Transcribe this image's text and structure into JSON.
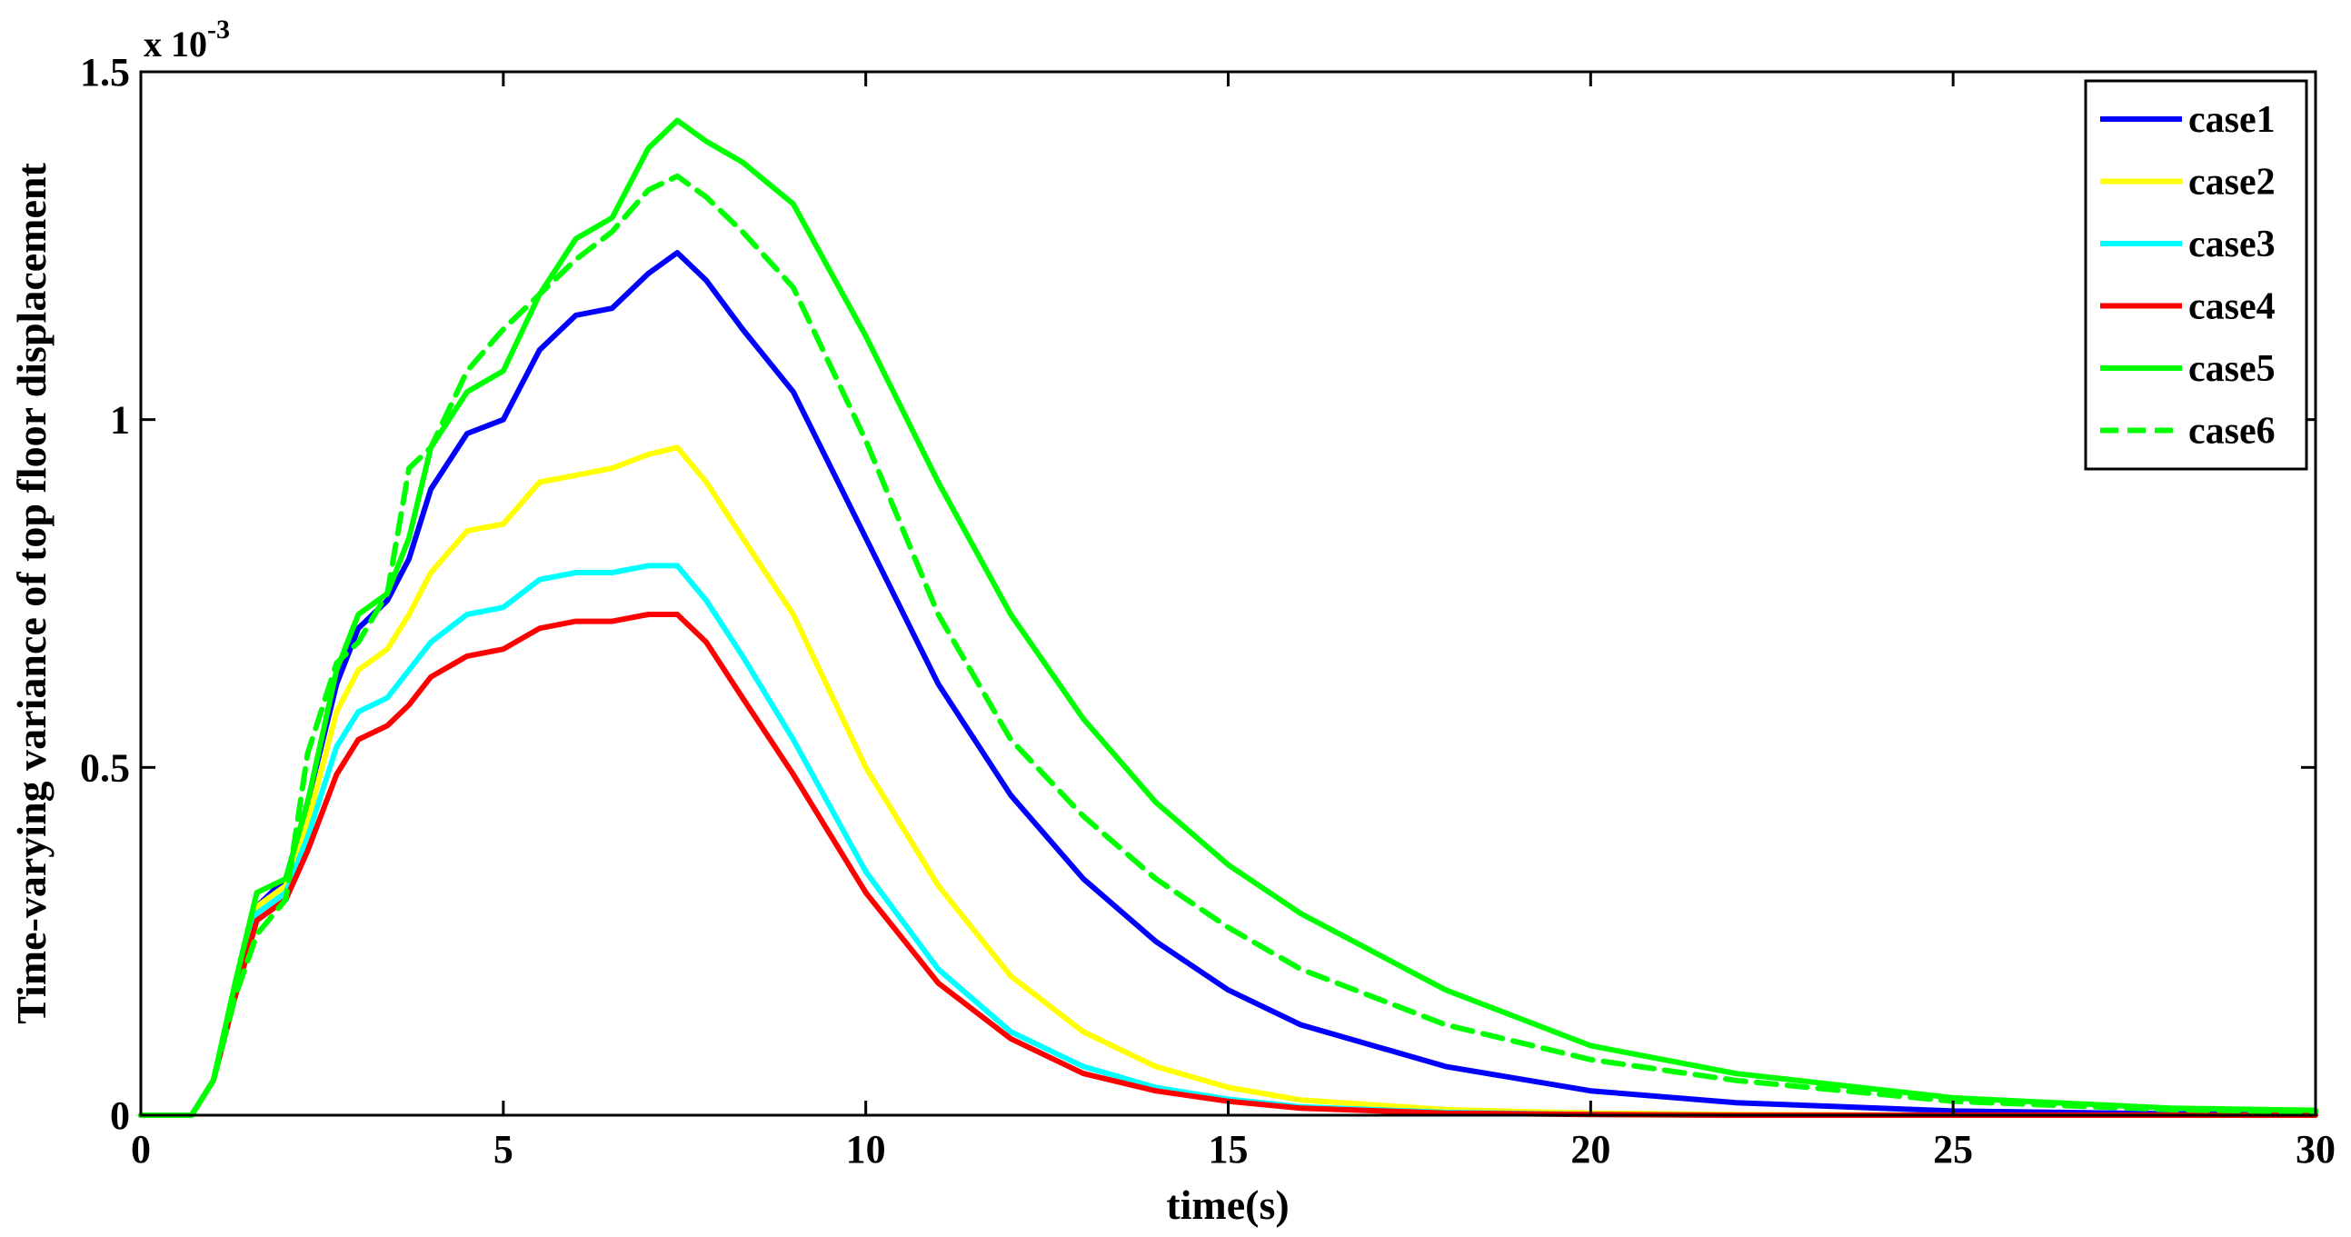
{
  "chart_data": {
    "type": "line",
    "xlabel": "time(s)",
    "ylabel": "Time-varying variance of top floor displacement",
    "y_multiplier": "x 10",
    "y_multiplier_exp": "-3",
    "xlim": [
      0,
      30
    ],
    "ylim": [
      0,
      1.5
    ],
    "x_ticks": [
      "0",
      "5",
      "10",
      "15",
      "20",
      "25",
      "30"
    ],
    "y_ticks": [
      "0",
      "0.5",
      "1",
      "1.5"
    ],
    "grid": false,
    "legend_position": "top-right",
    "x": [
      0,
      0.7,
      1.0,
      1.3,
      1.6,
      2.0,
      2.3,
      2.7,
      3.0,
      3.4,
      3.7,
      4.0,
      4.5,
      5.0,
      5.5,
      6.0,
      6.5,
      7.0,
      7.4,
      7.8,
      8.3,
      9.0,
      10.0,
      11.0,
      12.0,
      13.0,
      14.0,
      15.0,
      16.0,
      18.0,
      20.0,
      22.0,
      25.0,
      28.0,
      30.0
    ],
    "series": [
      {
        "name": "case1",
        "color": "#0000ff",
        "style": "solid",
        "values": [
          0,
          0,
          0.05,
          0.18,
          0.3,
          0.34,
          0.45,
          0.62,
          0.7,
          0.74,
          0.8,
          0.9,
          0.98,
          1.0,
          1.1,
          1.15,
          1.16,
          1.21,
          1.24,
          1.2,
          1.13,
          1.04,
          0.83,
          0.62,
          0.46,
          0.34,
          0.25,
          0.18,
          0.13,
          0.07,
          0.035,
          0.018,
          0.006,
          0.002,
          0.001
        ]
      },
      {
        "name": "case2",
        "color": "#ffff00",
        "style": "solid",
        "values": [
          0,
          0,
          0.05,
          0.18,
          0.3,
          0.33,
          0.42,
          0.58,
          0.64,
          0.67,
          0.72,
          0.78,
          0.84,
          0.85,
          0.91,
          0.92,
          0.93,
          0.95,
          0.96,
          0.91,
          0.83,
          0.72,
          0.5,
          0.33,
          0.2,
          0.12,
          0.07,
          0.04,
          0.022,
          0.008,
          0.003,
          0.001,
          0.0,
          0.0,
          0.0
        ]
      },
      {
        "name": "case3",
        "color": "#00ffff",
        "style": "solid",
        "values": [
          0,
          0,
          0.05,
          0.17,
          0.29,
          0.32,
          0.4,
          0.53,
          0.58,
          0.6,
          0.64,
          0.68,
          0.72,
          0.73,
          0.77,
          0.78,
          0.78,
          0.79,
          0.79,
          0.74,
          0.66,
          0.54,
          0.35,
          0.21,
          0.12,
          0.07,
          0.04,
          0.023,
          0.012,
          0.004,
          0.001,
          0.0,
          0.0,
          0.0,
          0.0
        ]
      },
      {
        "name": "case4",
        "color": "#ff0000",
        "style": "solid",
        "values": [
          0,
          0,
          0.05,
          0.17,
          0.28,
          0.31,
          0.38,
          0.49,
          0.54,
          0.56,
          0.59,
          0.63,
          0.66,
          0.67,
          0.7,
          0.71,
          0.71,
          0.72,
          0.72,
          0.68,
          0.6,
          0.49,
          0.32,
          0.19,
          0.11,
          0.06,
          0.035,
          0.02,
          0.01,
          0.003,
          0.001,
          0.0,
          0.0,
          0.0,
          0.0
        ]
      },
      {
        "name": "case5",
        "color": "#00ff00",
        "style": "solid",
        "values": [
          0,
          0,
          0.05,
          0.19,
          0.32,
          0.34,
          0.45,
          0.64,
          0.72,
          0.75,
          0.83,
          0.96,
          1.04,
          1.07,
          1.18,
          1.26,
          1.29,
          1.39,
          1.43,
          1.4,
          1.37,
          1.31,
          1.12,
          0.91,
          0.72,
          0.57,
          0.45,
          0.36,
          0.29,
          0.18,
          0.1,
          0.06,
          0.025,
          0.01,
          0.007
        ]
      },
      {
        "name": "case6",
        "color": "#00ff00",
        "style": "dashed",
        "values": [
          0,
          0,
          0.05,
          0.17,
          0.26,
          0.31,
          0.52,
          0.65,
          0.68,
          0.75,
          0.93,
          0.96,
          1.07,
          1.13,
          1.18,
          1.23,
          1.27,
          1.33,
          1.35,
          1.32,
          1.27,
          1.19,
          0.97,
          0.72,
          0.54,
          0.43,
          0.34,
          0.27,
          0.21,
          0.13,
          0.08,
          0.05,
          0.02,
          0.008,
          0.005
        ]
      }
    ]
  }
}
